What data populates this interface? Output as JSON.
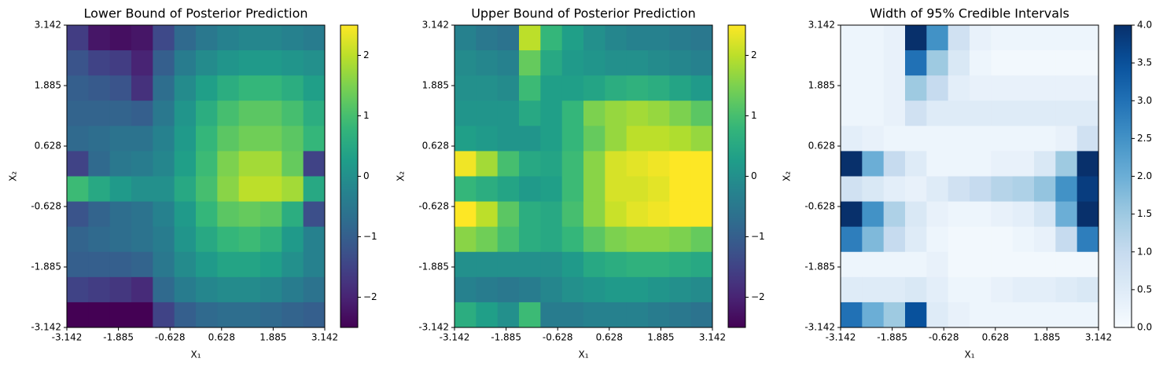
{
  "chart_data": [
    {
      "type": "heatmap",
      "title": "Lower Bound of Posterior Prediction",
      "xlabel": "X₁",
      "ylabel": "X₂",
      "colormap": "viridis",
      "xlim": [
        -3.142,
        3.142
      ],
      "ylim": [
        -3.142,
        3.142
      ],
      "xticks": [
        -3.142,
        -1.885,
        -0.628,
        0.628,
        1.885,
        3.142
      ],
      "yticks": [
        -3.142,
        -1.885,
        -0.628,
        0.628,
        1.885,
        3.142
      ],
      "clim": [
        -2.5,
        2.5
      ],
      "cticks": [
        {
          "value": -2,
          "label": "−2"
        },
        {
          "value": -1,
          "label": "−1"
        },
        0,
        1,
        2
      ],
      "z": [
        [
          -1.6,
          -2.2,
          -2.3,
          -2.2,
          -1.4,
          -0.8,
          -0.5,
          -0.3,
          -0.2,
          -0.2,
          -0.3,
          -0.4
        ],
        [
          -1.2,
          -1.5,
          -1.6,
          -2.0,
          -1.0,
          -0.4,
          -0.1,
          0.1,
          0.2,
          0.2,
          0.1,
          0.0
        ],
        [
          -1.0,
          -1.1,
          -1.2,
          -1.8,
          -0.7,
          -0.1,
          0.3,
          0.6,
          0.8,
          0.8,
          0.6,
          0.3
        ],
        [
          -0.9,
          -0.9,
          -0.9,
          -1.0,
          -0.5,
          0.1,
          0.6,
          1.0,
          1.2,
          1.2,
          1.0,
          0.6
        ],
        [
          -0.8,
          -0.7,
          -0.6,
          -0.6,
          -0.3,
          0.2,
          0.8,
          1.2,
          1.4,
          1.4,
          1.2,
          0.8
        ],
        [
          -1.5,
          -0.8,
          -0.5,
          -0.4,
          -0.2,
          0.3,
          0.9,
          1.5,
          1.8,
          1.8,
          1.3,
          -1.5
        ],
        [
          0.9,
          0.5,
          0.2,
          0.0,
          0.0,
          0.5,
          1.0,
          1.6,
          2.0,
          2.0,
          1.8,
          0.5
        ],
        [
          -1.2,
          -0.9,
          -0.7,
          -0.6,
          -0.3,
          0.2,
          0.8,
          1.2,
          1.3,
          1.2,
          0.6,
          -1.3
        ],
        [
          -0.9,
          -0.8,
          -0.7,
          -0.6,
          -0.4,
          0.1,
          0.5,
          0.8,
          0.9,
          0.7,
          0.2,
          -0.3
        ],
        [
          -1.0,
          -1.0,
          -1.0,
          -0.9,
          -0.5,
          -0.1,
          0.2,
          0.4,
          0.4,
          0.3,
          0.0,
          -0.3
        ],
        [
          -1.5,
          -1.6,
          -1.7,
          -1.9,
          -0.8,
          -0.4,
          -0.2,
          -0.1,
          -0.1,
          -0.2,
          -0.4,
          -0.6
        ],
        [
          -2.5,
          -2.5,
          -2.5,
          -2.5,
          -1.5,
          -1.0,
          -0.8,
          -0.7,
          -0.7,
          -0.8,
          -0.9,
          -1.0
        ]
      ]
    },
    {
      "type": "heatmap",
      "title": "Upper Bound of Posterior Prediction",
      "xlabel": "X₁",
      "ylabel": "X₂",
      "colormap": "viridis",
      "xlim": [
        -3.142,
        3.142
      ],
      "ylim": [
        -3.142,
        3.142
      ],
      "xticks": [
        -3.142,
        -1.885,
        -0.628,
        0.628,
        1.885,
        3.142
      ],
      "yticks": [
        -3.142,
        -1.885,
        -0.628,
        0.628,
        1.885,
        3.142
      ],
      "clim": [
        -2.5,
        2.5
      ],
      "cticks": [
        {
          "value": -2,
          "label": "−2"
        },
        {
          "value": -1,
          "label": "−1"
        },
        0,
        1,
        2
      ],
      "z": [
        [
          -0.3,
          -0.5,
          -0.6,
          2.0,
          0.8,
          0.3,
          0.0,
          -0.2,
          -0.3,
          -0.3,
          -0.4,
          -0.5
        ],
        [
          -0.1,
          -0.2,
          -0.3,
          1.3,
          0.5,
          0.2,
          0.1,
          0.0,
          0.0,
          -0.1,
          -0.2,
          -0.3
        ],
        [
          0.0,
          0.0,
          -0.1,
          0.9,
          0.3,
          0.3,
          0.4,
          0.6,
          0.7,
          0.6,
          0.4,
          0.2
        ],
        [
          0.1,
          0.1,
          0.1,
          0.5,
          0.3,
          0.8,
          1.5,
          1.7,
          1.8,
          1.7,
          1.5,
          1.2
        ],
        [
          0.3,
          0.2,
          0.1,
          0.1,
          0.3,
          0.8,
          1.3,
          1.7,
          2.0,
          2.0,
          1.9,
          1.7
        ],
        [
          2.4,
          1.8,
          1.0,
          0.5,
          0.4,
          0.9,
          1.6,
          2.2,
          2.3,
          2.4,
          2.5,
          2.5
        ],
        [
          0.8,
          0.6,
          0.4,
          0.2,
          0.3,
          0.9,
          1.6,
          2.2,
          2.2,
          2.3,
          2.5,
          2.5
        ],
        [
          2.5,
          2.0,
          1.2,
          0.6,
          0.5,
          1.0,
          1.6,
          2.1,
          2.3,
          2.4,
          2.5,
          2.5
        ],
        [
          1.6,
          1.4,
          1.0,
          0.6,
          0.5,
          0.8,
          1.2,
          1.5,
          1.6,
          1.6,
          1.5,
          1.3
        ],
        [
          0.0,
          0.0,
          0.0,
          0.0,
          0.0,
          0.2,
          0.5,
          0.6,
          0.7,
          0.7,
          0.6,
          0.5
        ],
        [
          -0.3,
          -0.4,
          -0.5,
          -0.4,
          -0.2,
          0.0,
          0.1,
          0.2,
          0.2,
          0.1,
          0.0,
          -0.1
        ],
        [
          0.6,
          0.3,
          0.0,
          0.9,
          -0.4,
          -0.4,
          -0.3,
          -0.3,
          -0.3,
          -0.4,
          -0.5,
          -0.6
        ]
      ]
    },
    {
      "type": "heatmap",
      "title": "Width of 95% Credible Intervals",
      "xlabel": "X₁",
      "ylabel": "X₂",
      "colormap": "Blues",
      "xlim": [
        -3.142,
        3.142
      ],
      "ylim": [
        -3.142,
        3.142
      ],
      "xticks": [
        -3.142,
        -1.885,
        -0.628,
        0.628,
        1.885,
        3.142
      ],
      "yticks": [
        -3.142,
        -1.885,
        -0.628,
        0.628,
        1.885,
        3.142
      ],
      "clim": [
        0,
        4
      ],
      "cticks": [
        {
          "value": 0,
          "label": "0.0"
        },
        0.5,
        {
          "value": 1,
          "label": "1.0"
        },
        1.5,
        {
          "value": 2,
          "label": "2.0"
        },
        2.5,
        {
          "value": 3,
          "label": "3.0"
        },
        3.5,
        {
          "value": 4,
          "label": "4.0"
        }
      ],
      "z": [
        [
          0.2,
          0.2,
          0.3,
          4.0,
          2.5,
          0.8,
          0.3,
          0.2,
          0.2,
          0.2,
          0.2,
          0.2
        ],
        [
          0.2,
          0.2,
          0.3,
          3.0,
          1.5,
          0.6,
          0.2,
          0.1,
          0.1,
          0.1,
          0.1,
          0.1
        ],
        [
          0.2,
          0.2,
          0.3,
          1.5,
          1.0,
          0.4,
          0.3,
          0.3,
          0.3,
          0.3,
          0.3,
          0.3
        ],
        [
          0.2,
          0.2,
          0.3,
          0.8,
          0.5,
          0.5,
          0.5,
          0.5,
          0.5,
          0.5,
          0.5,
          0.5
        ],
        [
          0.4,
          0.3,
          0.2,
          0.2,
          0.2,
          0.2,
          0.2,
          0.2,
          0.2,
          0.2,
          0.3,
          0.8
        ],
        [
          4.0,
          2.0,
          1.0,
          0.5,
          0.2,
          0.2,
          0.2,
          0.3,
          0.3,
          0.6,
          1.5,
          4.0
        ],
        [
          0.8,
          0.6,
          0.4,
          0.3,
          0.5,
          0.8,
          1.0,
          1.2,
          1.3,
          1.6,
          2.5,
          3.8
        ],
        [
          4.0,
          2.5,
          1.3,
          0.6,
          0.3,
          0.2,
          0.2,
          0.3,
          0.4,
          0.7,
          2.0,
          4.0
        ],
        [
          2.8,
          1.8,
          1.0,
          0.5,
          0.2,
          0.1,
          0.1,
          0.1,
          0.2,
          0.3,
          1.0,
          2.8
        ],
        [
          0.2,
          0.2,
          0.2,
          0.2,
          0.3,
          0.1,
          0.1,
          0.1,
          0.1,
          0.1,
          0.1,
          0.1
        ],
        [
          0.5,
          0.5,
          0.5,
          0.6,
          0.4,
          0.2,
          0.2,
          0.3,
          0.4,
          0.4,
          0.5,
          0.6
        ],
        [
          3.0,
          2.0,
          1.5,
          3.5,
          0.5,
          0.3,
          0.2,
          0.2,
          0.2,
          0.2,
          0.2,
          0.2
        ]
      ]
    }
  ]
}
